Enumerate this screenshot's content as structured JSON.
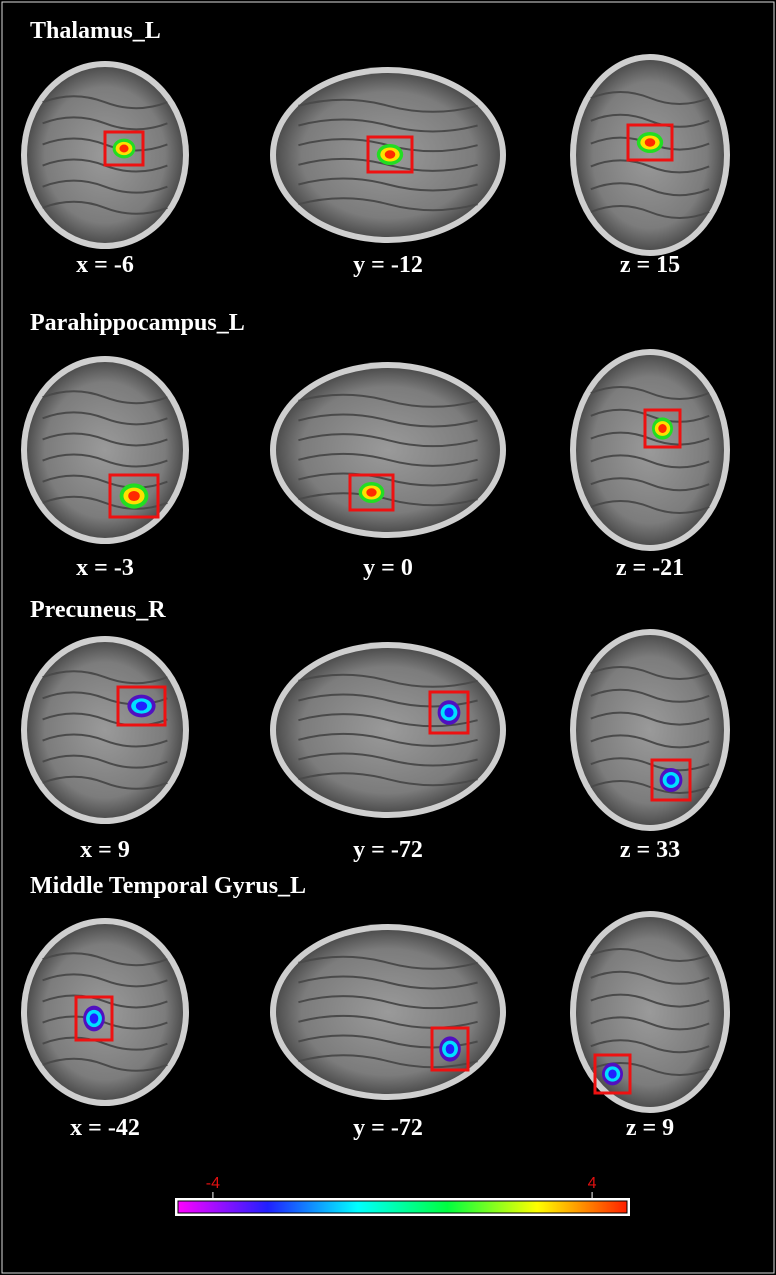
{
  "panels": [
    {
      "title": "Thalamus_L",
      "views": [
        {
          "label": "x = -6"
        },
        {
          "label": "y = -12"
        },
        {
          "label": "z = 15"
        }
      ]
    },
    {
      "title": "Parahippocampus_L",
      "views": [
        {
          "label": "x = -3"
        },
        {
          "label": "y = 0"
        },
        {
          "label": "z = -21"
        }
      ]
    },
    {
      "title": "Precuneus_R",
      "views": [
        {
          "label": "x = 9"
        },
        {
          "label": "y = -72"
        },
        {
          "label": "z = 33"
        }
      ]
    },
    {
      "title": "Middle Temporal Gyrus_L",
      "views": [
        {
          "label": "x = -42"
        },
        {
          "label": "y = -72"
        },
        {
          "label": "z = 9"
        }
      ]
    }
  ],
  "colorbar": {
    "lim": [
      -4.8,
      4.8
    ],
    "ticks": [
      -4,
      4
    ]
  }
}
